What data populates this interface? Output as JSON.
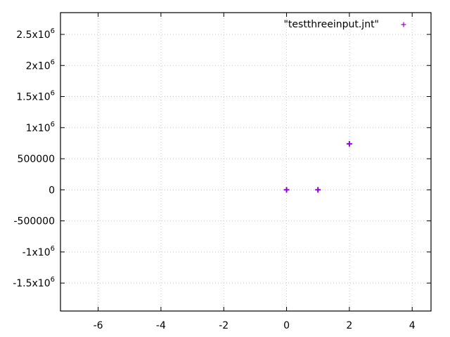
{
  "chart_data": {
    "type": "scatter",
    "title": "",
    "xlabel": "",
    "ylabel": "",
    "xlim": [
      -7.2,
      4.6
    ],
    "ylim": [
      -1950000,
      2850000
    ],
    "grid": true,
    "legend_position": "top-right",
    "x_ticks": [
      {
        "value": -6,
        "label": "-6"
      },
      {
        "value": -4,
        "label": "-4"
      },
      {
        "value": -2,
        "label": "-2"
      },
      {
        "value": 0,
        "label": "0"
      },
      {
        "value": 2,
        "label": "2"
      },
      {
        "value": 4,
        "label": "4"
      }
    ],
    "y_ticks": [
      {
        "value": 2500000,
        "mantissa": "2.5x10",
        "exp": "6"
      },
      {
        "value": 2000000,
        "mantissa": "2x10",
        "exp": "6"
      },
      {
        "value": 1500000,
        "mantissa": "1.5x10",
        "exp": "6"
      },
      {
        "value": 1000000,
        "mantissa": "1x10",
        "exp": "6"
      },
      {
        "value": 500000,
        "mantissa": "500000",
        "exp": ""
      },
      {
        "value": 0,
        "mantissa": "0",
        "exp": ""
      },
      {
        "value": -500000,
        "mantissa": "-500000",
        "exp": ""
      },
      {
        "value": -1000000,
        "mantissa": "-1x10",
        "exp": "6"
      },
      {
        "value": -1500000,
        "mantissa": "-1.5x10",
        "exp": "6"
      }
    ],
    "series": [
      {
        "name": "\"testthreeinput.jnt\"",
        "marker": "plus",
        "color": "#9400d3",
        "points": [
          {
            "x": 0,
            "y": 0
          },
          {
            "x": 1,
            "y": 0
          },
          {
            "x": 2,
            "y": 740000
          }
        ]
      }
    ]
  }
}
